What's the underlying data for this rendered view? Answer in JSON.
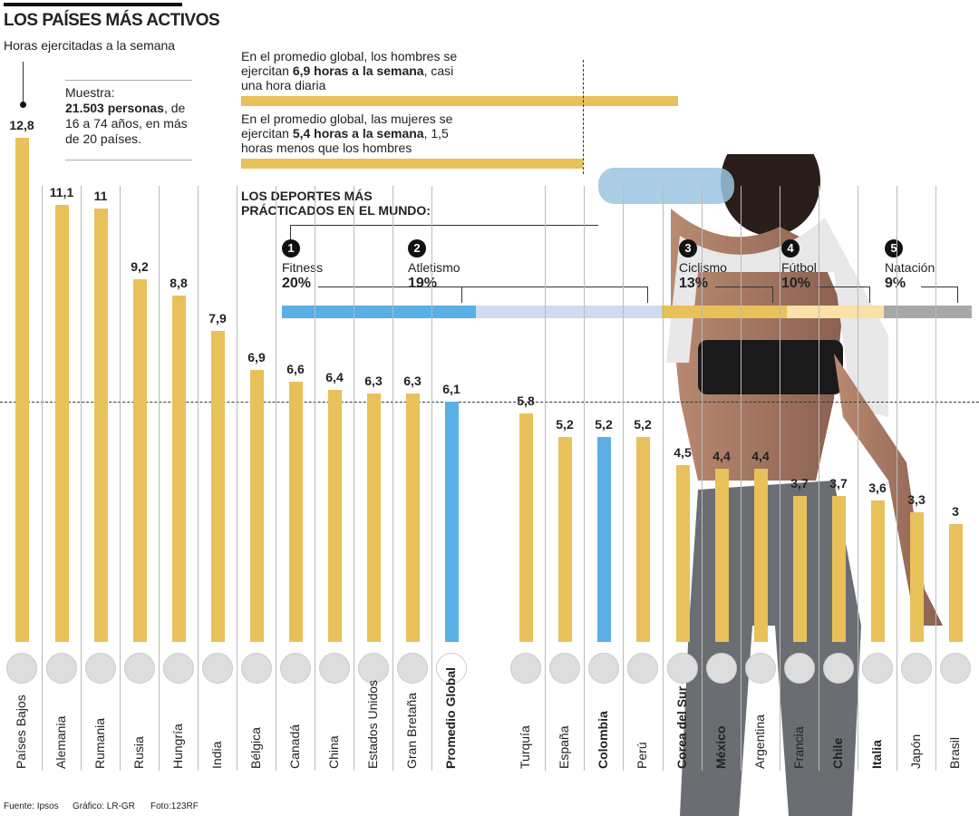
{
  "header": {
    "title": "LOS PAÍSES MÁS ACTIVOS",
    "subtitle": "Horas ejercitadas a la semana"
  },
  "sample": {
    "line1": "Muestra:",
    "bold": "21.503 personas",
    "rest": ", de 16 a 74 años, en más de 20 países."
  },
  "notes": {
    "men": {
      "pre": "En el promedio global, los hombres se ejercitan ",
      "bold": "6,9 horas a la semana",
      "post": ", casi una hora diaria",
      "value": 6.9
    },
    "women": {
      "pre": "En el promedio global, las mujeres se ejercitan ",
      "bold": "5,4 horas a la semana",
      "post": ", 1,5 horas menos que los hombres",
      "value": 5.4
    }
  },
  "sports": {
    "title": "LOS DEPORTES MÁS PRÁCTICADOS EN EL MUNDO:",
    "items": [
      {
        "rank": "1",
        "name": "Fitness",
        "pct": "20%",
        "color": "#5aafe6"
      },
      {
        "rank": "2",
        "name": "Atletismo",
        "pct": "19%",
        "color": "#cfdcf0"
      },
      {
        "rank": "3",
        "name": "Ciclismo",
        "pct": "13%",
        "color": "#e8c15a"
      },
      {
        "rank": "4",
        "name": "Fútbol",
        "pct": "10%",
        "color": "#fbe0a8"
      },
      {
        "rank": "5",
        "name": "Natación",
        "pct": "9%",
        "color": "#a8a8a8"
      }
    ]
  },
  "chart_data": {
    "type": "bar",
    "title": "LOS PAÍSES MÁS ACTIVOS",
    "ylabel": "Horas ejercitadas a la semana",
    "ylim": [
      0,
      12.8
    ],
    "reference_line": 6.1,
    "categories": [
      "Países Bajos",
      "Alemania",
      "Rumania",
      "Rusia",
      "Hungría",
      "India",
      "Bélgica",
      "Canadá",
      "China",
      "Estados Unidos",
      "Gran Bretaña",
      "Promedio Global",
      "Turquía",
      "España",
      "Colombia",
      "Perú",
      "Corea del Sur",
      "México",
      "Argentina",
      "Francia",
      "Chile",
      "Italia",
      "Japón",
      "Brasil"
    ],
    "values": [
      12.8,
      11.1,
      11,
      9.2,
      8.8,
      7.9,
      6.9,
      6.6,
      6.4,
      6.3,
      6.3,
      6.1,
      5.8,
      5.2,
      5.2,
      5.2,
      4.5,
      4.4,
      4.4,
      3.7,
      3.7,
      3.6,
      3.3,
      3
    ],
    "labels": [
      "12,8",
      "11,1",
      "11",
      "9,2",
      "8,8",
      "7,9",
      "6,9",
      "6,6",
      "6,4",
      "6,3",
      "6,3",
      "6,1",
      "5,8",
      "5,2",
      "5,2",
      "5,2",
      "4,5",
      "4,4",
      "4,4",
      "3,7",
      "3,7",
      "3,6",
      "3,3",
      "3"
    ],
    "highlight": [
      "Promedio Global",
      "Colombia"
    ],
    "bold_labels": [
      "Promedio Global",
      "Colombia",
      "Corea del Sur",
      "México",
      "Chile",
      "Italia"
    ],
    "colors": {
      "default": "#e8c15a",
      "highlight": "#5aafe6"
    }
  },
  "footer": {
    "source": "Fuente: Ipsos",
    "graphic": "Gráfico: LR-GR",
    "photo": "Foto:123RF"
  }
}
